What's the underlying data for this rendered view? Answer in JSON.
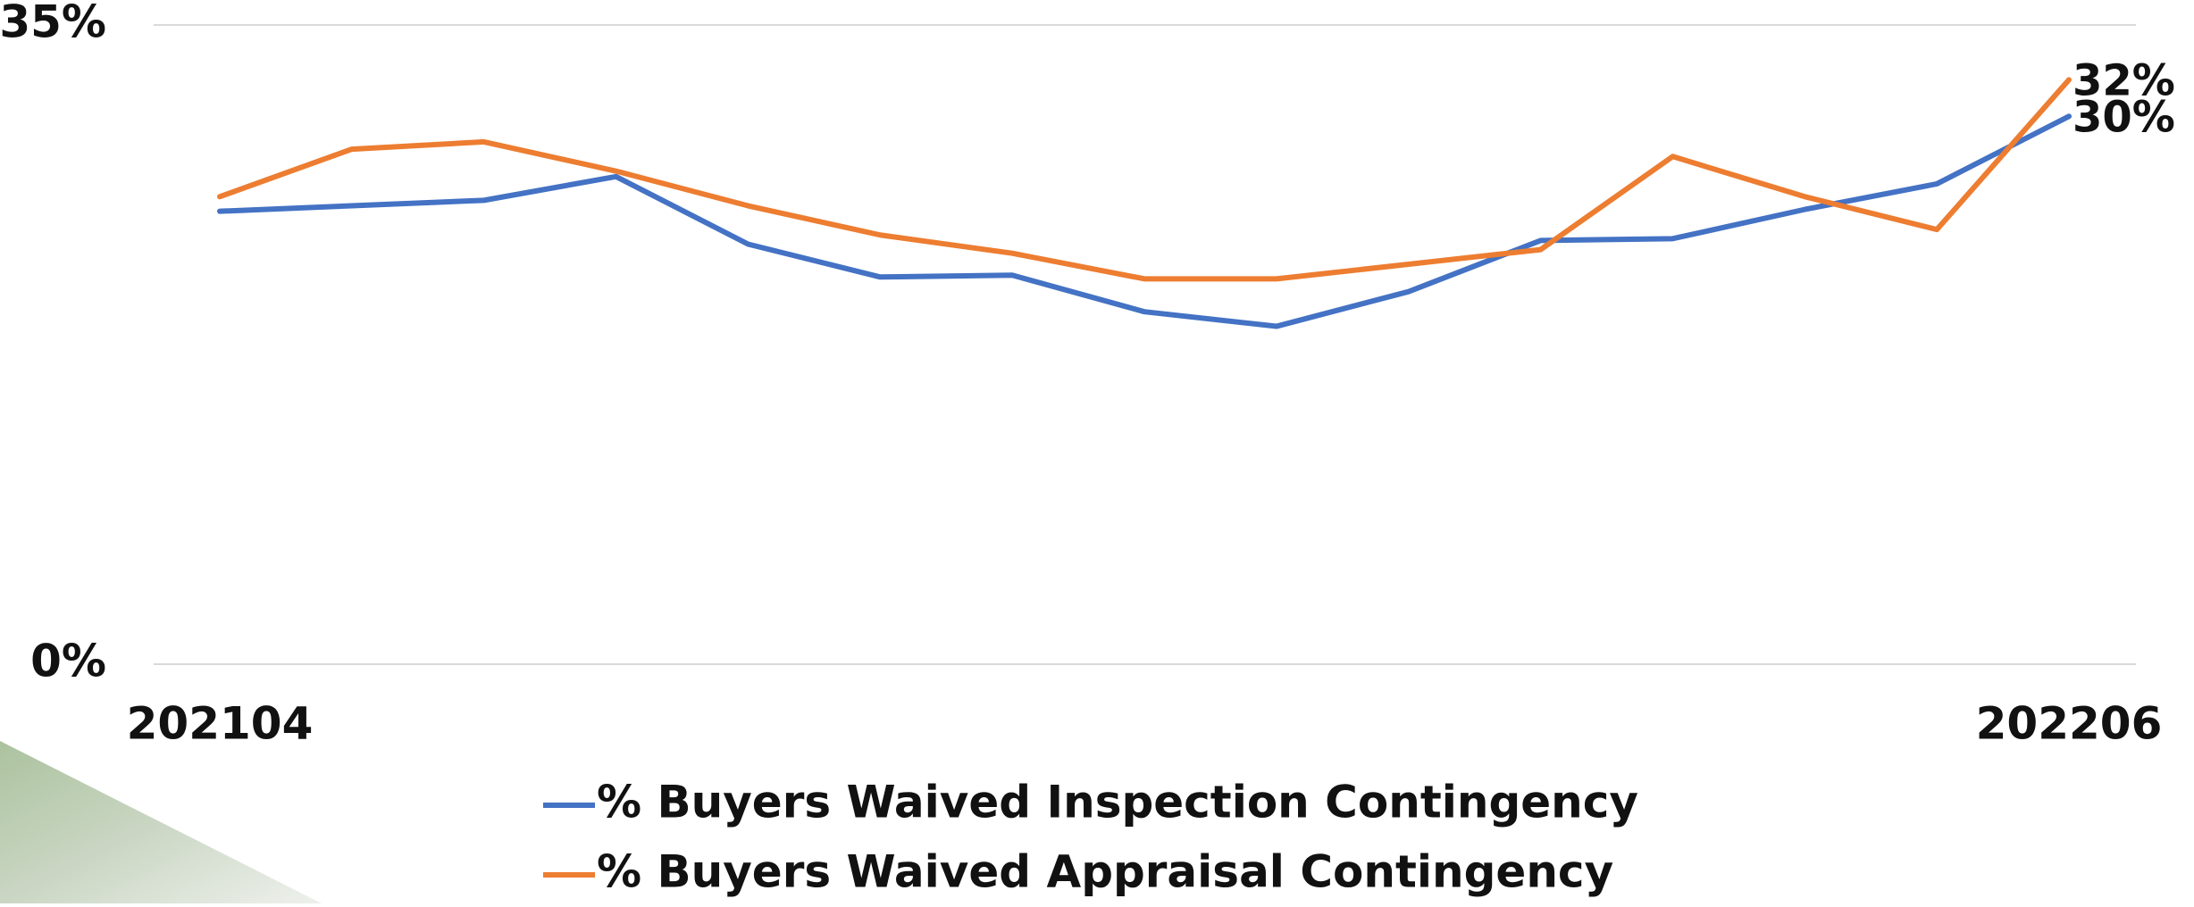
{
  "chart_data": {
    "type": "line",
    "categories": [
      "202104",
      null,
      null,
      null,
      null,
      null,
      null,
      null,
      null,
      null,
      null,
      null,
      null,
      null,
      "202206"
    ],
    "series": [
      {
        "name": "% Buyers Waived Inspection Contingency",
        "color": "#4472c4",
        "values": [
          24.8,
          25.1,
          25.4,
          26.7,
          23.0,
          21.2,
          21.3,
          19.3,
          18.5,
          20.4,
          23.2,
          23.3,
          24.9,
          26.3,
          30.0
        ],
        "value_labels": [
          null,
          null,
          null,
          null,
          null,
          null,
          null,
          null,
          null,
          null,
          null,
          null,
          null,
          null,
          "30%"
        ]
      },
      {
        "name": "% Buyers Waived Appraisal Contingency",
        "color": "#ed7d31",
        "values": [
          25.6,
          28.2,
          28.6,
          27.0,
          25.1,
          23.5,
          22.5,
          21.1,
          21.1,
          21.9,
          22.7,
          27.8,
          25.6,
          23.8,
          32.0
        ],
        "value_labels": [
          null,
          null,
          null,
          null,
          null,
          null,
          null,
          null,
          null,
          null,
          null,
          null,
          null,
          null,
          "32%"
        ]
      }
    ],
    "ylim": [
      0,
      35
    ],
    "yticks": [
      {
        "value": 0,
        "label": "0%"
      },
      {
        "value": 35,
        "label": "35%"
      }
    ],
    "grid": true
  }
}
